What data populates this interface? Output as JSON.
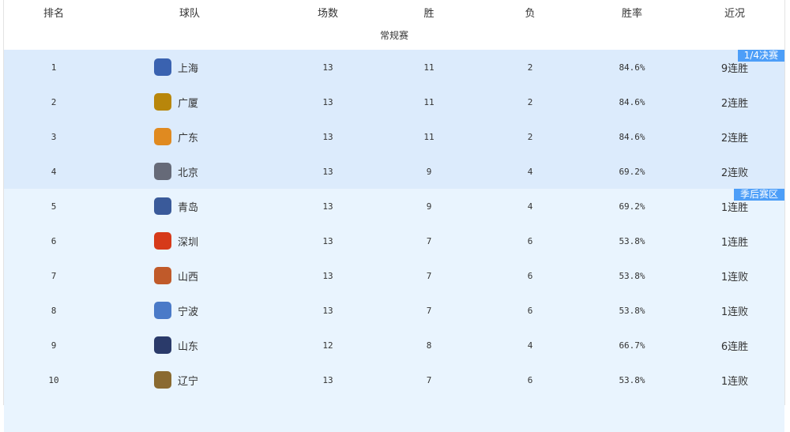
{
  "headers": [
    "排名",
    "球队",
    "场数",
    "胜",
    "负",
    "胜率",
    "近况"
  ],
  "season_label": "常规赛",
  "zones": [
    {
      "label": "1/4决赛",
      "color": "#dcebfc"
    },
    {
      "label": "季后赛区",
      "color": "#e9f4fe"
    }
  ],
  "tag_color": "#4d9ef8",
  "rows": [
    {
      "rank": "1",
      "team": "上海",
      "games": "13",
      "wins": "11",
      "losses": "2",
      "pct": "84.6%",
      "streak": "9连胜",
      "logo_color": "#3a62b0"
    },
    {
      "rank": "2",
      "team": "广厦",
      "games": "13",
      "wins": "11",
      "losses": "2",
      "pct": "84.6%",
      "streak": "2连胜",
      "logo_color": "#b8860b"
    },
    {
      "rank": "3",
      "team": "广东",
      "games": "13",
      "wins": "11",
      "losses": "2",
      "pct": "84.6%",
      "streak": "2连胜",
      "logo_color": "#e08a20"
    },
    {
      "rank": "4",
      "team": "北京",
      "games": "13",
      "wins": "9",
      "losses": "4",
      "pct": "69.2%",
      "streak": "2连败",
      "logo_color": "#666a78"
    },
    {
      "rank": "5",
      "team": "青岛",
      "games": "13",
      "wins": "9",
      "losses": "4",
      "pct": "69.2%",
      "streak": "1连胜",
      "logo_color": "#3a5a9a"
    },
    {
      "rank": "6",
      "team": "深圳",
      "games": "13",
      "wins": "7",
      "losses": "6",
      "pct": "53.8%",
      "streak": "1连胜",
      "logo_color": "#d63a1a"
    },
    {
      "rank": "7",
      "team": "山西",
      "games": "13",
      "wins": "7",
      "losses": "6",
      "pct": "53.8%",
      "streak": "1连败",
      "logo_color": "#c05a2a"
    },
    {
      "rank": "8",
      "team": "宁波",
      "games": "13",
      "wins": "7",
      "losses": "6",
      "pct": "53.8%",
      "streak": "1连败",
      "logo_color": "#4a7ac8"
    },
    {
      "rank": "9",
      "team": "山东",
      "games": "12",
      "wins": "8",
      "losses": "4",
      "pct": "66.7%",
      "streak": "6连胜",
      "logo_color": "#2a3a6a"
    },
    {
      "rank": "10",
      "team": "辽宁",
      "games": "13",
      "wins": "7",
      "losses": "6",
      "pct": "53.8%",
      "streak": "1连败",
      "logo_color": "#8a6a30"
    }
  ]
}
